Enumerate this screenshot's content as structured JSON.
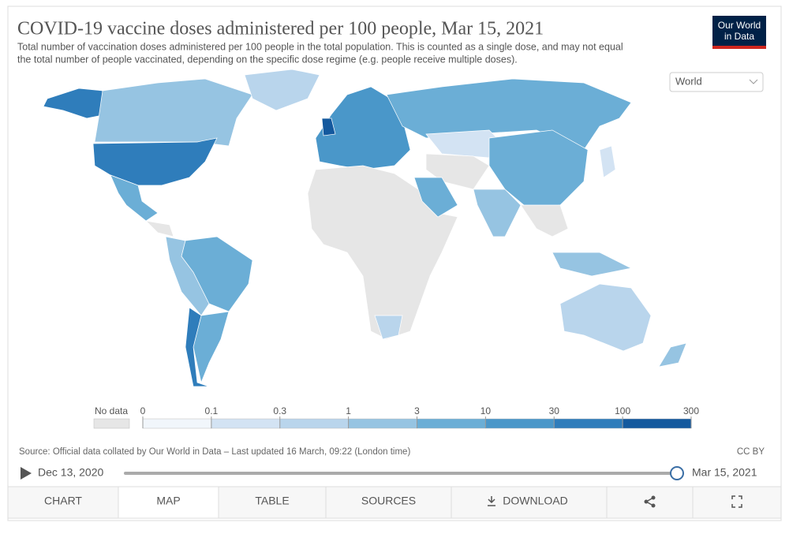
{
  "header": {
    "title": "COVID-19 vaccine doses administered per 100 people, Mar 15, 2021",
    "subtitle": [
      "Total number of vaccination doses administered per 100 people in the total population. This is counted as a single dose, and may not equal",
      "the total number of people vaccinated, depending on the specific dose regime (e.g. people receive multiple doses)."
    ],
    "logo": [
      "Our World",
      "in Data"
    ],
    "region_select": "World"
  },
  "legend": {
    "no_data_label": "No data",
    "bins": [
      0,
      0.1,
      0.3,
      1,
      3,
      10,
      30,
      100,
      300
    ],
    "colors": [
      "#f1f6fb",
      "#d3e3f3",
      "#b9d5ec",
      "#96c4e2",
      "#6baed6",
      "#4a97c9",
      "#2f7dbb",
      "#14599e"
    ]
  },
  "footer": {
    "source": "Source: Official data collated by Our World in Data – Last updated 16 March, 09:22 (London time)",
    "license": "CC BY"
  },
  "timeline": {
    "start": "Dec 13, 2020",
    "end": "Mar 15, 2021"
  },
  "tabs": [
    "CHART",
    "MAP",
    "TABLE",
    "SOURCES",
    "DOWNLOAD"
  ]
}
